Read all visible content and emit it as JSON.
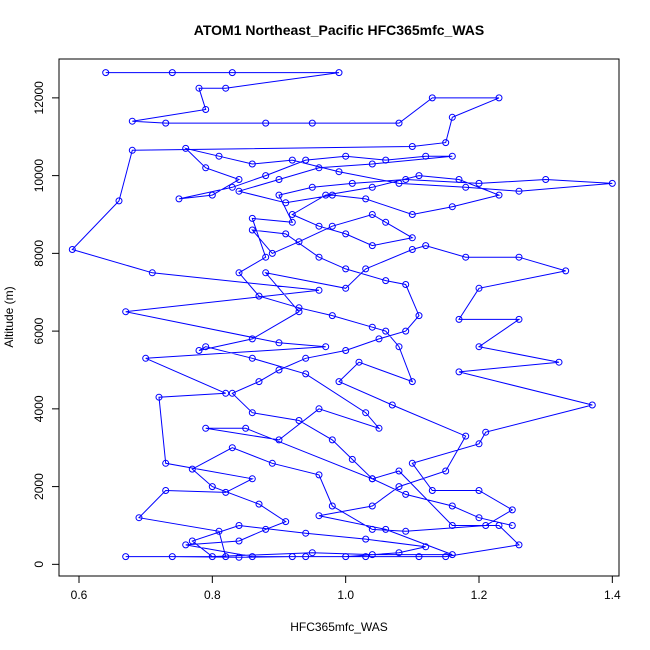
{
  "chart_data": {
    "type": "scatter",
    "title": "ATOM1 Northeast_Pacific HFC365mfc_WAS",
    "xlabel": "HFC365mfc_WAS",
    "ylabel": "Altitude (m)",
    "xlim": [
      0.57,
      1.41
    ],
    "ylim": [
      -300,
      13000
    ],
    "xticks": [
      0.6,
      0.8,
      1.0,
      1.2,
      1.4
    ],
    "xtick_labels": [
      "0.6",
      "0.8",
      "1.0",
      "1.2",
      "1.4"
    ],
    "yticks": [
      0,
      2000,
      4000,
      6000,
      8000,
      10000,
      12000
    ],
    "ytick_labels": [
      "0",
      "2000",
      "4000",
      "6000",
      "8000",
      "10000",
      "12000"
    ],
    "markers": "open-circle",
    "connected": true,
    "colors": {
      "series": "#0000ff",
      "axes": "#000000",
      "background": "#ffffff"
    },
    "grid": false,
    "legend": "none",
    "series": [
      {
        "values": [
          [
            0.64,
            12650
          ],
          [
            0.74,
            12650
          ],
          [
            0.83,
            12650
          ],
          [
            0.99,
            12650
          ],
          [
            0.82,
            12250
          ],
          [
            0.78,
            12250
          ],
          [
            0.79,
            11700
          ],
          [
            0.68,
            11400
          ],
          [
            0.73,
            11350
          ],
          [
            0.88,
            11350
          ],
          [
            0.95,
            11350
          ],
          [
            1.08,
            11350
          ],
          [
            1.13,
            12000
          ],
          [
            1.23,
            12000
          ],
          [
            1.16,
            11500
          ],
          [
            1.15,
            10850
          ],
          [
            1.1,
            10750
          ],
          [
            0.68,
            10650
          ],
          [
            0.66,
            9350
          ],
          [
            0.59,
            8100
          ],
          [
            0.71,
            7500
          ],
          [
            0.96,
            7050
          ],
          [
            0.67,
            6500
          ],
          [
            0.9,
            5700
          ],
          [
            0.97,
            5600
          ],
          [
            0.7,
            5300
          ],
          [
            0.82,
            4400
          ],
          [
            0.72,
            4300
          ],
          [
            0.73,
            2600
          ],
          [
            0.86,
            2200
          ],
          [
            0.82,
            1850
          ],
          [
            0.73,
            1900
          ],
          [
            0.69,
            1200
          ],
          [
            0.81,
            850
          ],
          [
            0.82,
            200
          ],
          [
            0.67,
            200
          ],
          [
            0.74,
            200
          ],
          [
            0.84,
            180
          ],
          [
            0.92,
            200
          ],
          [
            1.03,
            200
          ],
          [
            1.11,
            200
          ],
          [
            1.15,
            200
          ],
          [
            1.26,
            500
          ],
          [
            1.23,
            1000
          ],
          [
            1.16,
            1000
          ],
          [
            1.08,
            2400
          ],
          [
            1.04,
            2200
          ],
          [
            0.85,
            3500
          ],
          [
            0.79,
            3500
          ],
          [
            0.9,
            3200
          ],
          [
            0.96,
            4000
          ],
          [
            1.05,
            3500
          ],
          [
            1.03,
            3900
          ],
          [
            0.94,
            4900
          ],
          [
            0.86,
            5300
          ],
          [
            0.79,
            5600
          ],
          [
            0.78,
            5500
          ],
          [
            0.86,
            5800
          ],
          [
            0.93,
            6500
          ],
          [
            0.88,
            7500
          ],
          [
            1.0,
            7100
          ],
          [
            1.03,
            7600
          ],
          [
            1.1,
            8100
          ],
          [
            1.12,
            8200
          ],
          [
            1.18,
            7900
          ],
          [
            1.26,
            7900
          ],
          [
            1.33,
            7550
          ],
          [
            1.2,
            7100
          ],
          [
            1.17,
            6300
          ],
          [
            1.26,
            6300
          ],
          [
            1.2,
            5600
          ],
          [
            1.32,
            5200
          ],
          [
            1.17,
            4950
          ],
          [
            1.37,
            4100
          ],
          [
            1.21,
            3400
          ],
          [
            1.2,
            3100
          ],
          [
            1.1,
            2600
          ],
          [
            1.13,
            1900
          ],
          [
            1.2,
            1900
          ],
          [
            1.25,
            1400
          ],
          [
            1.21,
            1000
          ],
          [
            1.09,
            850
          ],
          [
            1.04,
            900
          ],
          [
            0.98,
            1500
          ],
          [
            0.96,
            2300
          ],
          [
            0.89,
            2600
          ],
          [
            0.83,
            3000
          ],
          [
            0.77,
            2450
          ],
          [
            0.8,
            2000
          ],
          [
            0.87,
            1550
          ],
          [
            0.91,
            1100
          ],
          [
            0.88,
            900
          ],
          [
            0.84,
            600
          ],
          [
            0.76,
            500
          ],
          [
            0.86,
            200
          ],
          [
            0.94,
            200
          ],
          [
            1.0,
            200
          ],
          [
            1.08,
            300
          ],
          [
            1.12,
            450
          ],
          [
            1.03,
            650
          ],
          [
            0.94,
            800
          ],
          [
            0.84,
            1000
          ],
          [
            0.77,
            600
          ],
          [
            0.8,
            200
          ],
          [
            0.95,
            300
          ],
          [
            1.04,
            250
          ],
          [
            1.16,
            250
          ],
          [
            1.06,
            900
          ],
          [
            0.96,
            1250
          ],
          [
            1.04,
            1500
          ],
          [
            1.08,
            2000
          ],
          [
            1.15,
            2400
          ],
          [
            1.18,
            3300
          ],
          [
            1.07,
            4100
          ],
          [
            0.99,
            4700
          ],
          [
            1.02,
            5200
          ],
          [
            1.1,
            4700
          ],
          [
            1.08,
            5600
          ],
          [
            1.06,
            6000
          ],
          [
            1.04,
            6100
          ],
          [
            0.98,
            6400
          ],
          [
            0.93,
            6600
          ],
          [
            0.87,
            6900
          ],
          [
            0.84,
            7500
          ],
          [
            0.88,
            7900
          ],
          [
            0.86,
            8900
          ],
          [
            0.92,
            8800
          ],
          [
            0.9,
            9500
          ],
          [
            0.95,
            9700
          ],
          [
            1.01,
            9800
          ],
          [
            1.09,
            9900
          ],
          [
            1.2,
            9800
          ],
          [
            1.3,
            9900
          ],
          [
            1.4,
            9800
          ],
          [
            1.26,
            9600
          ],
          [
            1.18,
            9700
          ],
          [
            1.08,
            9800
          ],
          [
            0.99,
            10100
          ],
          [
            0.92,
            10400
          ],
          [
            0.86,
            10300
          ],
          [
            0.81,
            10500
          ],
          [
            0.76,
            10700
          ],
          [
            0.79,
            10200
          ],
          [
            0.84,
            9900
          ],
          [
            0.8,
            9500
          ],
          [
            0.75,
            9400
          ],
          [
            0.83,
            9700
          ],
          [
            0.88,
            10000
          ],
          [
            0.94,
            10400
          ],
          [
            1.0,
            10500
          ],
          [
            1.06,
            10400
          ],
          [
            1.12,
            10500
          ],
          [
            1.16,
            10500
          ],
          [
            1.04,
            10300
          ],
          [
            0.96,
            10200
          ],
          [
            0.9,
            9900
          ],
          [
            0.84,
            9600
          ],
          [
            0.91,
            9300
          ],
          [
            0.98,
            9500
          ],
          [
            1.03,
            9400
          ],
          [
            1.1,
            9000
          ],
          [
            1.16,
            9200
          ],
          [
            1.23,
            9500
          ],
          [
            1.17,
            9900
          ],
          [
            1.11,
            10000
          ],
          [
            1.04,
            9700
          ],
          [
            0.97,
            9500
          ],
          [
            0.92,
            9000
          ],
          [
            0.96,
            8700
          ],
          [
            1.0,
            8500
          ],
          [
            1.04,
            8200
          ],
          [
            1.1,
            8400
          ],
          [
            1.06,
            8800
          ],
          [
            1.04,
            9000
          ],
          [
            0.98,
            8700
          ],
          [
            0.93,
            8300
          ],
          [
            0.89,
            8000
          ],
          [
            0.86,
            8600
          ],
          [
            0.91,
            8500
          ],
          [
            0.96,
            7900
          ],
          [
            1.0,
            7600
          ],
          [
            1.06,
            7300
          ],
          [
            1.09,
            7200
          ],
          [
            1.11,
            6400
          ],
          [
            1.09,
            6000
          ],
          [
            1.05,
            5800
          ],
          [
            1.0,
            5500
          ],
          [
            0.94,
            5300
          ],
          [
            0.9,
            5000
          ],
          [
            0.87,
            4700
          ],
          [
            0.83,
            4400
          ],
          [
            0.86,
            3900
          ],
          [
            0.93,
            3700
          ],
          [
            0.98,
            3200
          ],
          [
            1.01,
            2700
          ],
          [
            1.04,
            2200
          ],
          [
            1.09,
            1800
          ],
          [
            1.16,
            1500
          ],
          [
            1.2,
            1200
          ],
          [
            1.25,
            1000
          ]
        ]
      }
    ]
  }
}
